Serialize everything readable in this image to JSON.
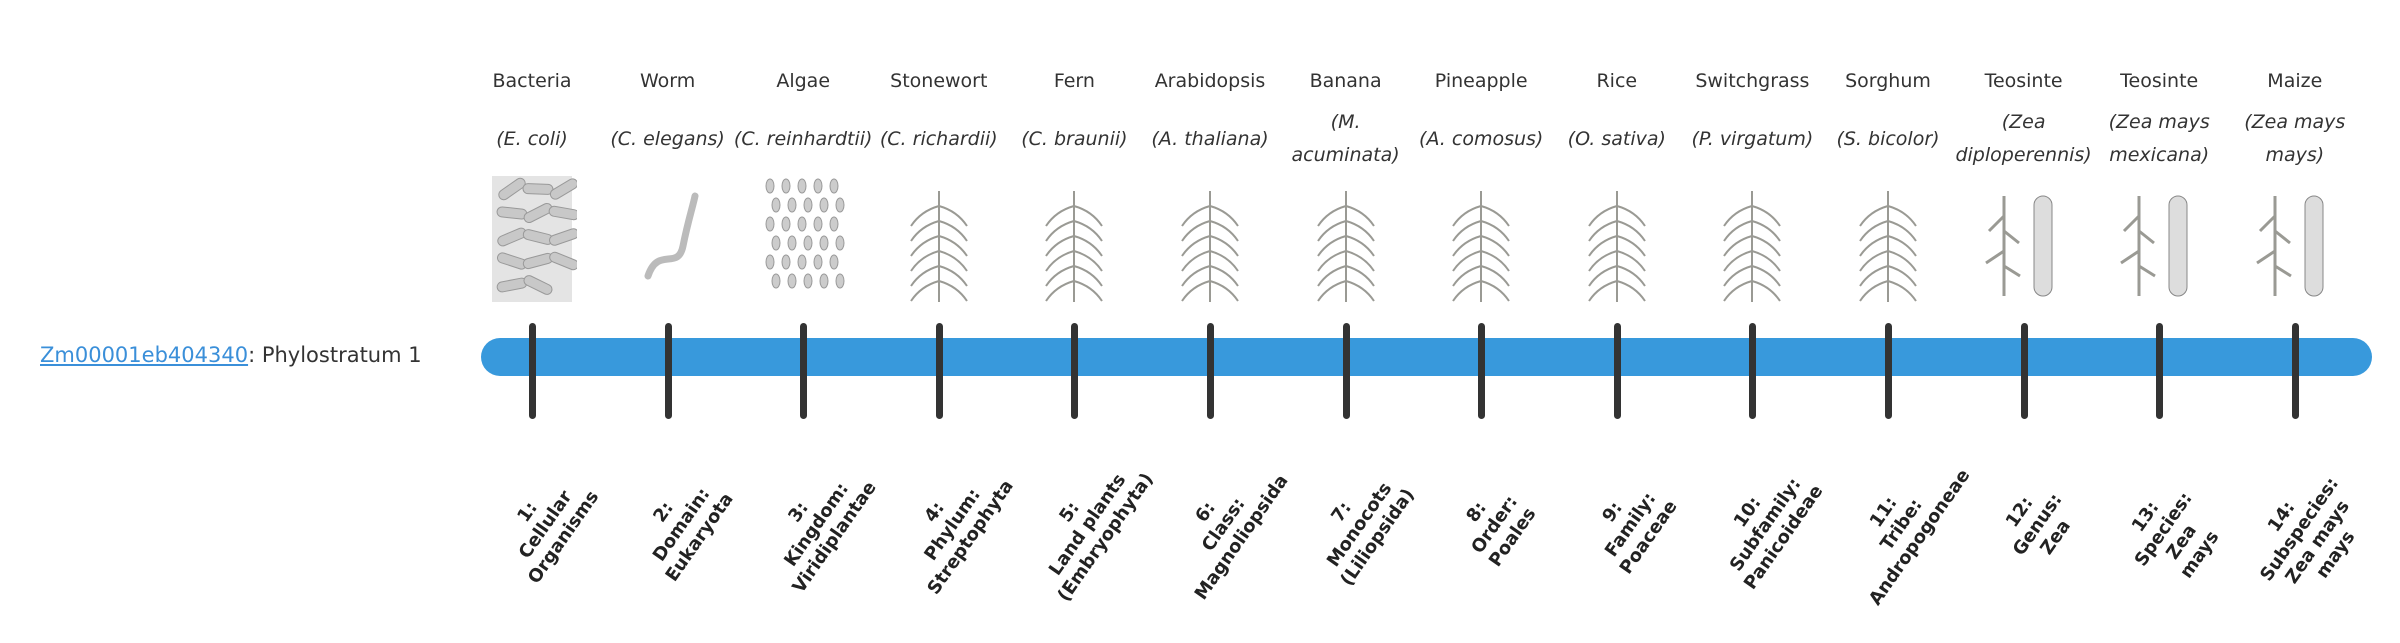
{
  "gene": {
    "id": "Zm00001eb404340",
    "suffix": ": Phylostratum 1"
  },
  "colors": {
    "bar": "#3899dc",
    "tick": "#333333",
    "link": "#3a8fd9"
  },
  "strata": [
    {
      "common": "Bacteria",
      "species": "(E. coli)",
      "icon": "bacteria-illustration",
      "lines": [
        "1:",
        "Cellular",
        "Organisms"
      ]
    },
    {
      "common": "Worm",
      "species": "(C. elegans)",
      "icon": "worm-illustration",
      "lines": [
        "2:",
        "Domain:",
        "Eukaryota"
      ]
    },
    {
      "common": "Algae",
      "species": "(C. reinhardtii)",
      "icon": "algae-illustration",
      "lines": [
        "3:",
        "Kingdom:",
        "Viridiplantae"
      ]
    },
    {
      "common": "Stonewort",
      "species": "(C. richardii)",
      "icon": "stonewort-illustration",
      "lines": [
        "4:",
        "Phylum:",
        "Streptophyta"
      ]
    },
    {
      "common": "Fern",
      "species": "(C. braunii)",
      "icon": "fern-illustration",
      "lines": [
        "5:",
        "Land plants",
        "(Embryophyta)"
      ]
    },
    {
      "common": "Arabidopsis",
      "species": "(A. thaliana)",
      "icon": "arabidopsis-illustration",
      "lines": [
        "6:",
        "Class:",
        "Magnoliopsida"
      ]
    },
    {
      "common": "Banana",
      "species": "(M. acuminata)",
      "icon": "banana-illustration",
      "lines": [
        "7:",
        "Monocots",
        "(Liliopsida)"
      ]
    },
    {
      "common": "Pineapple",
      "species": "(A. comosus)",
      "icon": "pineapple-illustration",
      "lines": [
        "8:",
        "Order:",
        "Poales"
      ]
    },
    {
      "common": "Rice",
      "species": "(O. sativa)",
      "icon": "rice-illustration",
      "lines": [
        "9:",
        "Family:",
        "Poaceae"
      ]
    },
    {
      "common": "Switchgrass",
      "species": "(P. virgatum)",
      "icon": "switchgrass-illustration",
      "lines": [
        "10:",
        "Subfamily:",
        "Panicoideae"
      ]
    },
    {
      "common": "Sorghum",
      "species": "(S. bicolor)",
      "icon": "sorghum-illustration",
      "lines": [
        "11:",
        "Tribe:",
        "Andropogoneae"
      ]
    },
    {
      "common": "Teosinte",
      "species": "(Zea diploperennis)",
      "icon": "teosinte-illustration",
      "lines": [
        "12:",
        "Genus:",
        "Zea"
      ]
    },
    {
      "common": "Teosinte",
      "species": "(Zea mays mexicana)",
      "icon": "teosinte-mexicana-illustration",
      "lines": [
        "13:",
        "Species:",
        "Zea",
        "mays"
      ]
    },
    {
      "common": "Maize",
      "species": "(Zea mays mays)",
      "icon": "maize-illustration",
      "lines": [
        "14:",
        "Subspecies:",
        "Zea mays",
        "mays"
      ]
    }
  ]
}
